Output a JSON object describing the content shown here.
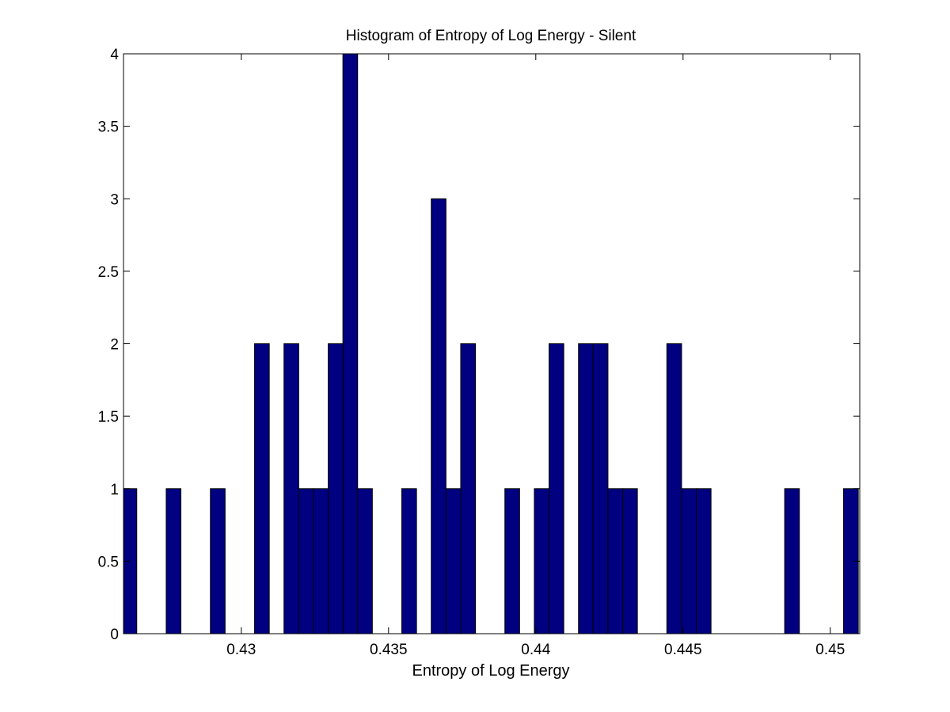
{
  "chart_data": {
    "type": "bar",
    "title": "Histogram of Entropy of Log Energy - Silent",
    "xlabel": "Entropy of Log Energy",
    "ylabel": "",
    "xlim": [
      0.426,
      0.451
    ],
    "ylim": [
      0,
      4
    ],
    "x_ticks": [
      0.43,
      0.435,
      0.44,
      0.445,
      0.45
    ],
    "x_tick_labels": [
      "0.43",
      "0.435",
      "0.44",
      "0.445",
      "0.45"
    ],
    "y_ticks": [
      0,
      0.5,
      1,
      1.5,
      2,
      2.5,
      3,
      3.5,
      4
    ],
    "y_tick_labels": [
      "0",
      "0.5",
      "1",
      "1.5",
      "2",
      "2.5",
      "3",
      "3.5",
      "4"
    ],
    "grid": false,
    "bin_width": 0.0005,
    "bin_centers": [
      0.4262,
      0.4277,
      0.4292,
      0.4307,
      0.4317,
      0.4322,
      0.4327,
      0.4332,
      0.4337,
      0.4342,
      0.4357,
      0.4367,
      0.4372,
      0.4377,
      0.4392,
      0.4402,
      0.4407,
      0.4417,
      0.4422,
      0.4427,
      0.4432,
      0.4447,
      0.4452,
      0.4457,
      0.4487,
      0.4507
    ],
    "values": [
      1,
      1,
      1,
      2,
      2,
      1,
      1,
      2,
      4,
      1,
      1,
      3,
      1,
      2,
      1,
      1,
      2,
      2,
      2,
      1,
      1,
      2,
      1,
      1,
      1,
      1
    ],
    "bar_color": "#000080",
    "edge_color": "#000000"
  }
}
